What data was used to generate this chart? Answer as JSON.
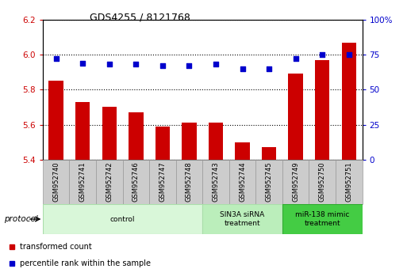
{
  "title": "GDS4255 / 8121768",
  "samples": [
    "GSM952740",
    "GSM952741",
    "GSM952742",
    "GSM952746",
    "GSM952747",
    "GSM952748",
    "GSM952743",
    "GSM952744",
    "GSM952745",
    "GSM952749",
    "GSM952750",
    "GSM952751"
  ],
  "red_bars": [
    5.85,
    5.73,
    5.7,
    5.67,
    5.59,
    5.61,
    5.61,
    5.5,
    5.47,
    5.89,
    5.97,
    6.07
  ],
  "blue_dots": [
    72,
    69,
    68,
    68,
    67,
    67,
    68,
    65,
    65,
    72,
    75,
    75
  ],
  "ylim_left": [
    5.4,
    6.2
  ],
  "ylim_right": [
    0,
    100
  ],
  "yticks_left": [
    5.4,
    5.6,
    5.8,
    6.0,
    6.2
  ],
  "yticks_right": [
    0,
    25,
    50,
    75,
    100
  ],
  "ytick_labels_right": [
    "0",
    "25",
    "50",
    "75",
    "100%"
  ],
  "bar_color": "#cc0000",
  "dot_color": "#0000cc",
  "bar_bottom": 5.4,
  "groups": [
    {
      "label": "control",
      "start": 0,
      "end": 6,
      "color": "#d9f7d9",
      "edge_color": "#aaddaa"
    },
    {
      "label": "SIN3A siRNA\ntreatment",
      "start": 6,
      "end": 9,
      "color": "#bbeebb",
      "edge_color": "#aaddaa"
    },
    {
      "label": "miR-138 mimic\ntreatment",
      "start": 9,
      "end": 12,
      "color": "#44cc44",
      "edge_color": "#33aa33"
    }
  ],
  "legend_items": [
    {
      "label": "transformed count",
      "color": "#cc0000"
    },
    {
      "label": "percentile rank within the sample",
      "color": "#0000cc"
    }
  ],
  "protocol_label": "protocol",
  "bg_color": "#ffffff",
  "xlabel_bg": "#cccccc",
  "xlabel_edge": "#999999"
}
